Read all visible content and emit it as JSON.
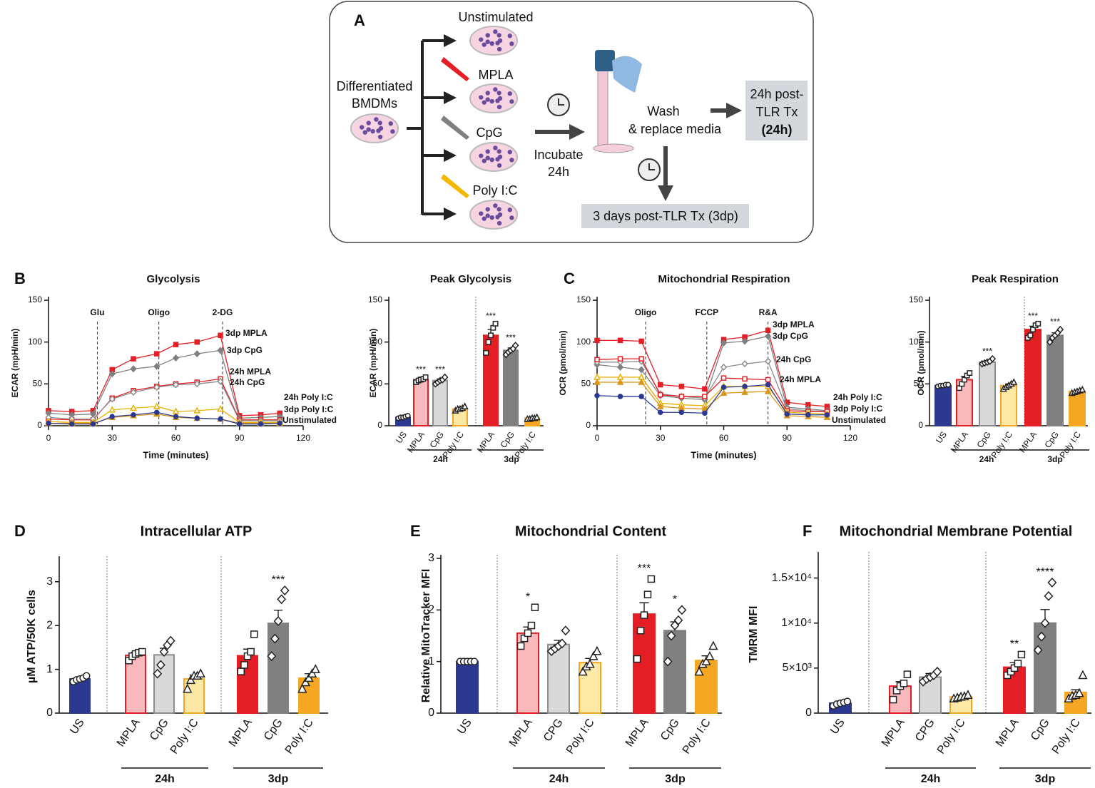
{
  "diagram": {
    "letter": "A",
    "conditions": [
      "Unstimulated",
      "MPLA",
      "CpG",
      "Poly I:C"
    ],
    "source": [
      "Differentiated",
      "BMDMs"
    ],
    "incubate": [
      "Incubate",
      "24h"
    ],
    "wash": [
      "Wash",
      "& replace media"
    ],
    "post24": [
      "24h post-",
      "TLR Tx",
      "(24h)"
    ],
    "post3dp": "3 days post-TLR Tx (3dp)"
  },
  "chart_data": [
    {
      "type": "line",
      "panel": "B",
      "title": "Glycolysis",
      "x_label": "Time (minutes)",
      "y_label": "ECAR (mpH/min)",
      "x": [
        0,
        11,
        21,
        30,
        40,
        51,
        60,
        70,
        81,
        90,
        100,
        109
      ],
      "xlim": [
        0,
        120
      ],
      "xticks": [
        0,
        30,
        60,
        90,
        120
      ],
      "ylim": [
        0,
        150
      ],
      "yticks": [
        0,
        50,
        100,
        150
      ],
      "events": [
        {
          "label": "Glu",
          "x": 23
        },
        {
          "label": "Oligo",
          "x": 52
        },
        {
          "label": "2-DG",
          "x": 82
        }
      ],
      "series": [
        {
          "name": "3dp MPLA",
          "color": "#e31e24",
          "marker": "square",
          "filled": true,
          "values": [
            18,
            17,
            18,
            67,
            80,
            86,
            97,
            100,
            108,
            12,
            13,
            15
          ]
        },
        {
          "name": "3dp CpG",
          "color": "#808080",
          "marker": "diamond",
          "filled": true,
          "values": [
            15,
            13,
            14,
            62,
            68,
            71,
            81,
            86,
            90,
            9,
            10,
            11
          ]
        },
        {
          "name": "24h MPLA",
          "color": "#e31e24",
          "marker": "square",
          "filled": false,
          "values": [
            8,
            7,
            7,
            33,
            42,
            47,
            50,
            52,
            56,
            7,
            7,
            7
          ]
        },
        {
          "name": "24h CpG",
          "color": "#8c8c8c",
          "marker": "diamond",
          "filled": false,
          "values": [
            10,
            8,
            8,
            32,
            40,
            46,
            49,
            50,
            53,
            6,
            6,
            6
          ]
        },
        {
          "name": "24h Poly I:C",
          "color": "#e8b100",
          "marker": "triangle",
          "filled": false,
          "values": [
            5,
            4,
            4,
            19,
            21,
            23,
            17,
            18,
            20,
            4,
            4,
            4
          ]
        },
        {
          "name": "3dp Poly I:C",
          "color": "#d9971e",
          "marker": "triangle",
          "filled": true,
          "values": [
            3,
            3,
            3,
            10,
            12,
            14,
            10,
            9,
            8,
            3,
            3,
            3
          ]
        },
        {
          "name": "Unstimulated",
          "color": "#2b3990",
          "marker": "circle",
          "filled": true,
          "values": [
            3,
            2,
            2,
            11,
            13,
            16,
            11,
            9,
            8,
            2,
            2,
            3
          ]
        }
      ]
    },
    {
      "type": "bar",
      "title": "Peak Glycolysis",
      "y_label": "ECAR (mpH/min)",
      "categories": [
        "US",
        "MPLA",
        "CpG",
        "Poly I:C",
        "MPLA",
        "CpG",
        "Poly I:C"
      ],
      "groups": [
        {
          "label": "24h",
          "start": 1,
          "end": 3
        },
        {
          "label": "3dp",
          "start": 4,
          "end": 6
        }
      ],
      "values": [
        10,
        55,
        54,
        20,
        108,
        90,
        9
      ],
      "errors": [
        1,
        3,
        2,
        2,
        7,
        3,
        1
      ],
      "points": [
        [
          9,
          10,
          10,
          11,
          12
        ],
        [
          52,
          54,
          55,
          56,
          58
        ],
        [
          50,
          52,
          54,
          55,
          58
        ],
        [
          18,
          20,
          20,
          21,
          23
        ],
        [
          87,
          100,
          108,
          117,
          122
        ],
        [
          85,
          88,
          90,
          92,
          96
        ],
        [
          8,
          8,
          9,
          9,
          10
        ]
      ],
      "annotations": [
        {
          "index": 1,
          "text": "***"
        },
        {
          "index": 2,
          "text": "***"
        },
        {
          "index": 4,
          "text": "***"
        },
        {
          "index": 5,
          "text": "***"
        }
      ],
      "ylim": [
        0,
        150
      ],
      "yticks": [
        0,
        50,
        100,
        150
      ]
    },
    {
      "type": "line",
      "panel": "C",
      "title": "Mitochondrial Respiration",
      "x_label": "Time (minutes)",
      "y_label": "OCR (pmol/min)",
      "x": [
        0,
        11,
        21,
        30,
        40,
        51,
        60,
        70,
        81,
        90,
        100,
        109
      ],
      "xlim": [
        0,
        120
      ],
      "xticks": [
        0,
        30,
        60,
        90,
        120
      ],
      "ylim": [
        0,
        150
      ],
      "yticks": [
        0,
        50,
        100,
        150
      ],
      "events": [
        {
          "label": "Oligo",
          "x": 23
        },
        {
          "label": "FCCP",
          "x": 52
        },
        {
          "label": "R&A",
          "x": 81
        }
      ],
      "series": [
        {
          "name": "3dp MPLA",
          "color": "#e31e24",
          "marker": "square",
          "filled": true,
          "values": [
            102,
            102,
            101,
            49,
            47,
            44,
            103,
            106,
            114,
            28,
            25,
            23
          ]
        },
        {
          "name": "3dp CpG",
          "color": "#808080",
          "marker": "diamond",
          "filled": true,
          "values": [
            73,
            70,
            67,
            36,
            33,
            31,
            99,
            101,
            107,
            22,
            20,
            18
          ]
        },
        {
          "name": "24h CpG",
          "color": "#8c8c8c",
          "marker": "diamond",
          "filled": false,
          "values": [
            76,
            76,
            77,
            38,
            35,
            33,
            70,
            74,
            77,
            20,
            18,
            17
          ]
        },
        {
          "name": "24h MPLA",
          "color": "#e31e24",
          "marker": "square",
          "filled": false,
          "values": [
            79,
            80,
            80,
            37,
            35,
            35,
            57,
            56,
            55,
            18,
            17,
            17
          ]
        },
        {
          "name": "24h Poly I:C",
          "color": "#e8b100",
          "marker": "triangle",
          "filled": false,
          "values": [
            58,
            58,
            58,
            27,
            25,
            24,
            47,
            47,
            47,
            16,
            15,
            14
          ]
        },
        {
          "name": "3dp Poly I:C",
          "color": "#d9971e",
          "marker": "triangle",
          "filled": true,
          "values": [
            52,
            52,
            52,
            23,
            21,
            20,
            39,
            40,
            41,
            12,
            11,
            10
          ]
        },
        {
          "name": "Unstimulated",
          "color": "#2b3990",
          "marker": "circle",
          "filled": true,
          "values": [
            36,
            35,
            35,
            16,
            16,
            15,
            46,
            47,
            49,
            14,
            13,
            13
          ]
        }
      ]
    },
    {
      "type": "bar",
      "title": "Peak Respiration",
      "y_label": "OCR (pmol/min)",
      "categories": [
        "US",
        "MPLA",
        "CpG",
        "Poly I:C",
        "MPLA",
        "CpG",
        "Poly I:C"
      ],
      "groups": [
        {
          "label": "24h",
          "start": 1,
          "end": 3
        },
        {
          "label": "3dp",
          "start": 4,
          "end": 6
        }
      ],
      "values": [
        48,
        55,
        76,
        48,
        115,
        108,
        41
      ],
      "errors": [
        1,
        4,
        2,
        2,
        4,
        3,
        1
      ],
      "points": [
        [
          47,
          48,
          48,
          49,
          49
        ],
        [
          45,
          50,
          55,
          60,
          63
        ],
        [
          74,
          75,
          76,
          77,
          80
        ],
        [
          44,
          46,
          48,
          50,
          52
        ],
        [
          105,
          108,
          115,
          120,
          122
        ],
        [
          100,
          105,
          108,
          111,
          115
        ],
        [
          39,
          40,
          41,
          42,
          43
        ]
      ],
      "annotations": [
        {
          "index": 2,
          "text": "***"
        },
        {
          "index": 4,
          "text": "***"
        },
        {
          "index": 5,
          "text": "***"
        }
      ],
      "ylim": [
        0,
        150
      ],
      "yticks": [
        0,
        50,
        100,
        150
      ]
    },
    {
      "type": "bar",
      "panel": "D",
      "title": "Intracellular ATP",
      "y_label": "µM ATP/50K cells",
      "categories": [
        "US",
        "MPLA",
        "CpG",
        "Poly I:C",
        "MPLA",
        "CpG",
        "Poly I:C"
      ],
      "groups": [
        {
          "label": "24h",
          "start": 1,
          "end": 3
        },
        {
          "label": "3dp",
          "start": 4,
          "end": 6
        }
      ],
      "values": [
        0.78,
        1.32,
        1.33,
        0.78,
        1.31,
        2.05,
        0.8
      ],
      "errors": [
        0.04,
        0.07,
        0.15,
        0.09,
        0.15,
        0.3,
        0.1
      ],
      "points": [
        [
          0.72,
          0.76,
          0.78,
          0.8,
          0.85
        ],
        [
          1.2,
          1.3,
          1.35,
          1.38,
          1.4
        ],
        [
          0.9,
          1.1,
          1.4,
          1.55,
          1.65
        ],
        [
          0.55,
          0.75,
          0.85,
          0.85,
          0.9
        ],
        [
          0.95,
          1.1,
          1.3,
          1.4,
          1.8
        ],
        [
          1.3,
          1.7,
          2.1,
          2.6,
          2.8
        ],
        [
          0.55,
          0.7,
          0.8,
          0.9,
          1.0
        ]
      ],
      "annotations": [
        {
          "index": 5,
          "text": "***"
        }
      ],
      "ylim": [
        0,
        3.5
      ],
      "yticks": [
        0,
        1,
        2,
        3
      ]
    },
    {
      "type": "bar",
      "panel": "E",
      "title": "Mitochondrial Content",
      "y_label": "Relative MitoTracker MFI",
      "categories": [
        "US",
        "MPLA",
        "CPG",
        "Poly I:C",
        "MPLA",
        "CpG",
        "Poly I:C"
      ],
      "groups": [
        {
          "label": "24h",
          "start": 1,
          "end": 3
        },
        {
          "label": "3dp",
          "start": 4,
          "end": 6
        }
      ],
      "values": [
        1.0,
        1.55,
        1.33,
        0.98,
        1.92,
        1.6,
        1.02
      ],
      "errors": [
        0,
        0.12,
        0.08,
        0.08,
        0.22,
        0.17,
        0.09
      ],
      "points": [
        [
          1,
          1,
          1,
          1,
          1
        ],
        [
          1.3,
          1.45,
          1.55,
          1.7,
          2.05
        ],
        [
          1.2,
          1.25,
          1.3,
          1.35,
          1.6
        ],
        [
          0.8,
          0.9,
          0.95,
          1.1,
          1.2
        ],
        [
          1.05,
          1.6,
          1.9,
          2.3,
          2.6
        ],
        [
          1.0,
          1.5,
          1.7,
          1.8,
          2.0
        ],
        [
          0.8,
          0.95,
          1.0,
          1.1,
          1.3
        ]
      ],
      "annotations": [
        {
          "index": 1,
          "text": "*"
        },
        {
          "index": 4,
          "text": "***"
        },
        {
          "index": 5,
          "text": "*"
        }
      ],
      "ylim": [
        0,
        3
      ],
      "yticks": [
        0,
        1,
        2,
        3
      ]
    },
    {
      "type": "bar",
      "panel": "F",
      "title": "Mitochondrial Membrane Potential",
      "y_label": "TMRM MFI",
      "categories": [
        "US",
        "MPLA",
        "CPG",
        "Poly I:C",
        "MPLA",
        "CpG",
        "Poly I:C"
      ],
      "groups": [
        {
          "label": "24h",
          "start": 1,
          "end": 3
        },
        {
          "label": "3dp",
          "start": 4,
          "end": 6
        }
      ],
      "values": [
        1100,
        3000,
        4000,
        1800,
        5100,
        10000,
        2300
      ],
      "errors": [
        200,
        500,
        400,
        200,
        500,
        1500,
        300
      ],
      "points": [
        [
          800,
          1000,
          1100,
          1200,
          1300
        ],
        [
          1500,
          2500,
          3000,
          3300,
          4300
        ],
        [
          3500,
          3800,
          4000,
          4200,
          4600
        ],
        [
          1600,
          1700,
          1800,
          1850,
          2000
        ],
        [
          4200,
          4600,
          5000,
          5500,
          6500
        ],
        [
          7000,
          8500,
          10000,
          13000,
          14500
        ],
        [
          1600,
          1900,
          2000,
          2200,
          4200
        ]
      ],
      "annotations": [
        {
          "index": 4,
          "text": "**"
        },
        {
          "index": 5,
          "text": "****"
        }
      ],
      "ylim": [
        0,
        17500
      ],
      "yticks": [
        0,
        {
          "value": 5000,
          "label": "5×10³"
        },
        {
          "value": 10000,
          "label": "1×10⁴"
        },
        {
          "value": 15000,
          "label": "1.5×10⁴"
        }
      ]
    }
  ]
}
